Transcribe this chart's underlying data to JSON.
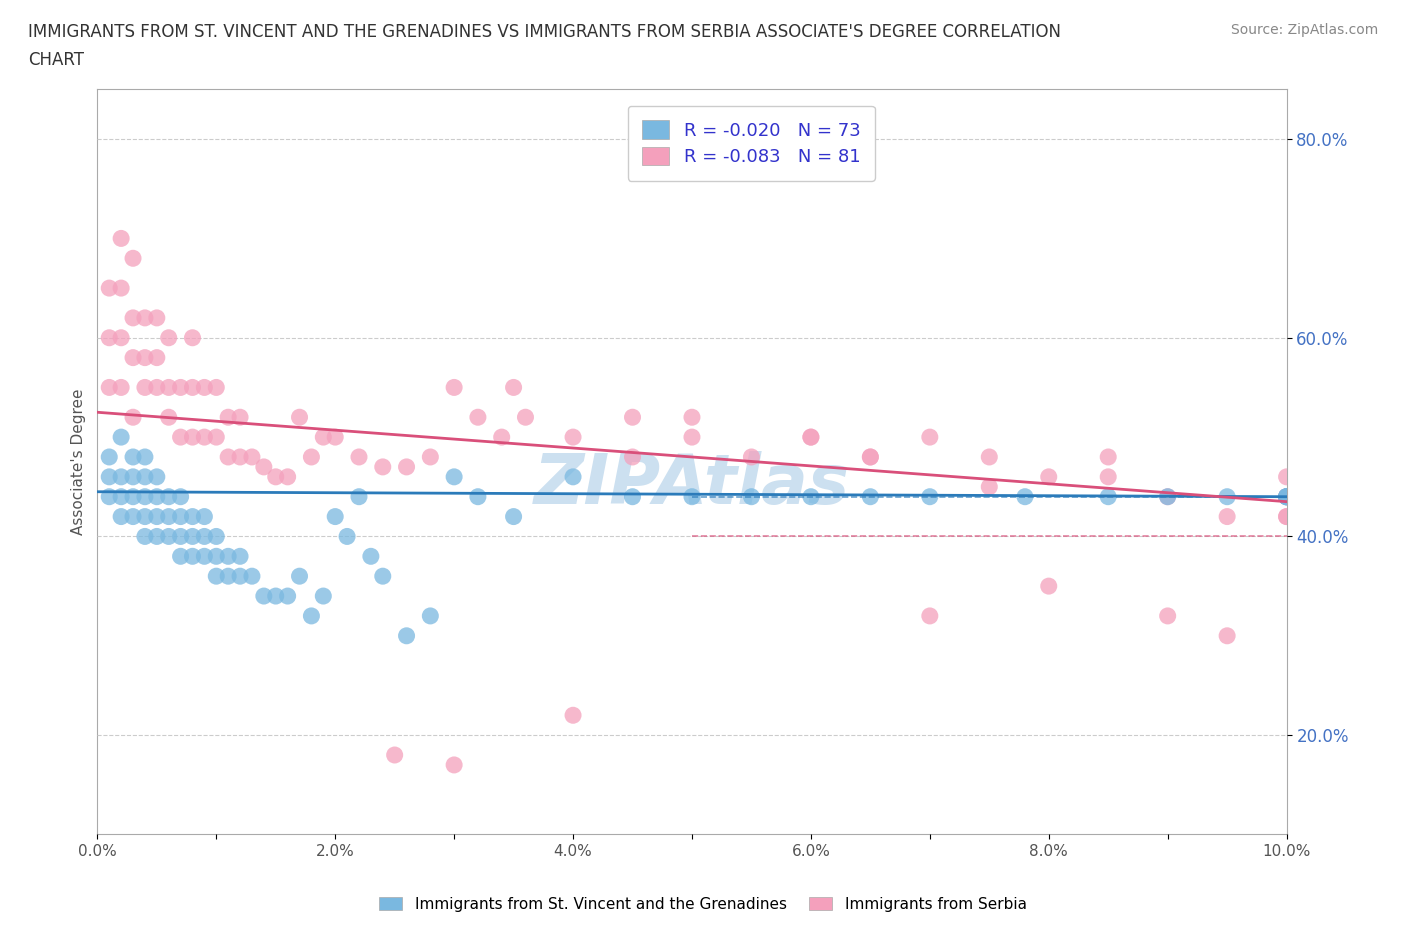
{
  "title_line1": "IMMIGRANTS FROM ST. VINCENT AND THE GRENADINES VS IMMIGRANTS FROM SERBIA ASSOCIATE'S DEGREE CORRELATION",
  "title_line2": "CHART",
  "source_text": "Source: ZipAtlas.com",
  "ylabel": "Associate's Degree",
  "series1_label": "Immigrants from St. Vincent and the Grenadines",
  "series2_label": "Immigrants from Serbia",
  "series1_color": "#7ab8e0",
  "series2_color": "#f4a0bc",
  "series1_R": "-0.020",
  "series1_N": "73",
  "series2_R": "-0.083",
  "series2_N": "81",
  "trend1_color": "#2b7bba",
  "trend2_color": "#d94f7a",
  "watermark": "ZIPAtlas",
  "watermark_color": "#cce0f0",
  "xlim": [
    0.0,
    0.1
  ],
  "ylim": [
    0.1,
    0.85
  ],
  "xtick_labels": [
    "0.0%",
    "",
    "2.0%",
    "",
    "4.0%",
    "",
    "6.0%",
    "",
    "8.0%",
    "",
    "10.0%"
  ],
  "xtick_values": [
    0.0,
    0.01,
    0.02,
    0.03,
    0.04,
    0.05,
    0.06,
    0.07,
    0.08,
    0.09,
    0.1
  ],
  "ytick_labels": [
    "20.0%",
    "40.0%",
    "60.0%",
    "80.0%"
  ],
  "ytick_values": [
    0.2,
    0.4,
    0.6,
    0.8
  ],
  "grid_color": "#cccccc",
  "grid_style": "--",
  "background_color": "#ffffff",
  "legend_text_color": "#3333cc",
  "series1_x": [
    0.001,
    0.001,
    0.001,
    0.002,
    0.002,
    0.002,
    0.002,
    0.003,
    0.003,
    0.003,
    0.003,
    0.004,
    0.004,
    0.004,
    0.004,
    0.004,
    0.005,
    0.005,
    0.005,
    0.005,
    0.006,
    0.006,
    0.006,
    0.007,
    0.007,
    0.007,
    0.007,
    0.008,
    0.008,
    0.008,
    0.009,
    0.009,
    0.009,
    0.01,
    0.01,
    0.01,
    0.011,
    0.011,
    0.012,
    0.012,
    0.013,
    0.014,
    0.015,
    0.016,
    0.017,
    0.018,
    0.019,
    0.02,
    0.021,
    0.022,
    0.023,
    0.024,
    0.026,
    0.028,
    0.03,
    0.032,
    0.035,
    0.04,
    0.045,
    0.05,
    0.055,
    0.06,
    0.065,
    0.07,
    0.078,
    0.085,
    0.09,
    0.095,
    0.1,
    0.1,
    0.1,
    0.1,
    0.1
  ],
  "series1_y": [
    0.44,
    0.46,
    0.48,
    0.42,
    0.44,
    0.46,
    0.5,
    0.42,
    0.44,
    0.46,
    0.48,
    0.4,
    0.42,
    0.44,
    0.46,
    0.48,
    0.4,
    0.42,
    0.44,
    0.46,
    0.4,
    0.42,
    0.44,
    0.38,
    0.4,
    0.42,
    0.44,
    0.38,
    0.4,
    0.42,
    0.38,
    0.4,
    0.42,
    0.36,
    0.38,
    0.4,
    0.36,
    0.38,
    0.36,
    0.38,
    0.36,
    0.34,
    0.34,
    0.34,
    0.36,
    0.32,
    0.34,
    0.42,
    0.4,
    0.44,
    0.38,
    0.36,
    0.3,
    0.32,
    0.46,
    0.44,
    0.42,
    0.46,
    0.44,
    0.44,
    0.44,
    0.44,
    0.44,
    0.44,
    0.44,
    0.44,
    0.44,
    0.44,
    0.44,
    0.44,
    0.44,
    0.44,
    0.44
  ],
  "series2_x": [
    0.001,
    0.001,
    0.001,
    0.002,
    0.002,
    0.002,
    0.002,
    0.003,
    0.003,
    0.003,
    0.003,
    0.004,
    0.004,
    0.004,
    0.005,
    0.005,
    0.005,
    0.006,
    0.006,
    0.006,
    0.007,
    0.007,
    0.008,
    0.008,
    0.008,
    0.009,
    0.009,
    0.01,
    0.01,
    0.011,
    0.011,
    0.012,
    0.012,
    0.013,
    0.014,
    0.015,
    0.016,
    0.017,
    0.018,
    0.019,
    0.02,
    0.022,
    0.024,
    0.026,
    0.028,
    0.03,
    0.032,
    0.034,
    0.036,
    0.04,
    0.045,
    0.05,
    0.055,
    0.06,
    0.065,
    0.07,
    0.075,
    0.08,
    0.085,
    0.09,
    0.095,
    0.1,
    0.1,
    0.1,
    0.1,
    0.1,
    0.1,
    0.025,
    0.03,
    0.035,
    0.04,
    0.045,
    0.05,
    0.06,
    0.065,
    0.07,
    0.075,
    0.08,
    0.085,
    0.09,
    0.095
  ],
  "series2_y": [
    0.55,
    0.6,
    0.65,
    0.55,
    0.6,
    0.65,
    0.7,
    0.52,
    0.58,
    0.62,
    0.68,
    0.55,
    0.58,
    0.62,
    0.55,
    0.58,
    0.62,
    0.52,
    0.55,
    0.6,
    0.5,
    0.55,
    0.5,
    0.55,
    0.6,
    0.5,
    0.55,
    0.5,
    0.55,
    0.48,
    0.52,
    0.48,
    0.52,
    0.48,
    0.47,
    0.46,
    0.46,
    0.52,
    0.48,
    0.5,
    0.5,
    0.48,
    0.47,
    0.47,
    0.48,
    0.55,
    0.52,
    0.5,
    0.52,
    0.5,
    0.48,
    0.5,
    0.48,
    0.5,
    0.48,
    0.5,
    0.48,
    0.46,
    0.46,
    0.44,
    0.42,
    0.42,
    0.44,
    0.46,
    0.44,
    0.42,
    0.44,
    0.18,
    0.17,
    0.55,
    0.22,
    0.52,
    0.52,
    0.5,
    0.48,
    0.32,
    0.45,
    0.35,
    0.48,
    0.32,
    0.3
  ]
}
